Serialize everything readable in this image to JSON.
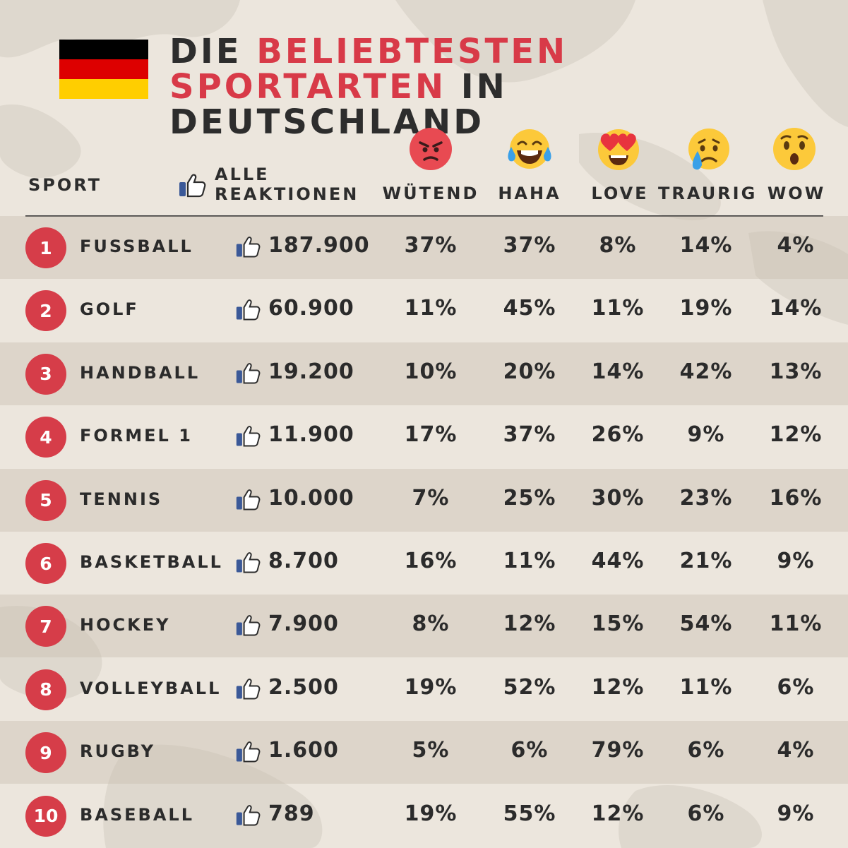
{
  "title": {
    "line1_dark": "DIE",
    "line1_red": "BELIEBTESTEN",
    "line2_red": "SPORTARTEN",
    "line2_dark": "IN DEUTSCHLAND"
  },
  "flag": {
    "colors": [
      "#000000",
      "#dd0000",
      "#ffce00"
    ]
  },
  "colors": {
    "accent_red": "#d63d49",
    "thumb_blue": "#3b5998",
    "text": "#2d2d2d"
  },
  "headers": {
    "sport": "SPORT",
    "total_line1": "ALLE",
    "total_line2": "REAKTIONEN",
    "reactions": [
      {
        "label": "WÜTEND",
        "icon": "angry-emoji-icon"
      },
      {
        "label": "HAHA",
        "icon": "laughing-tears-emoji-icon"
      },
      {
        "label": "LOVE",
        "icon": "heart-eyes-emoji-icon"
      },
      {
        "label": "TRAURIG",
        "icon": "crying-emoji-icon"
      },
      {
        "label": "WOW",
        "icon": "surprised-emoji-icon"
      }
    ]
  },
  "chart_data": {
    "type": "table",
    "columns": [
      "SPORT",
      "ALLE REAKTIONEN",
      "WÜTEND",
      "HAHA",
      "LOVE",
      "TRAURIG",
      "WOW"
    ],
    "rows": [
      {
        "rank": "1",
        "sport": "FUßBALL",
        "total": "187.900",
        "reactions": [
          "37%",
          "37%",
          "8%",
          "14%",
          "4%"
        ]
      },
      {
        "rank": "2",
        "sport": "GOLF",
        "total": "60.900",
        "reactions": [
          "11%",
          "45%",
          "11%",
          "19%",
          "14%"
        ]
      },
      {
        "rank": "3",
        "sport": "HANDBALL",
        "total": "19.200",
        "reactions": [
          "10%",
          "20%",
          "14%",
          "42%",
          "13%"
        ]
      },
      {
        "rank": "4",
        "sport": "FORMEL 1",
        "total": "11.900",
        "reactions": [
          "17%",
          "37%",
          "26%",
          "9%",
          "12%"
        ]
      },
      {
        "rank": "5",
        "sport": "TENNIS",
        "total": "10.000",
        "reactions": [
          "7%",
          "25%",
          "30%",
          "23%",
          "16%"
        ]
      },
      {
        "rank": "6",
        "sport": "BASKETBALL",
        "total": "8.700",
        "reactions": [
          "16%",
          "11%",
          "44%",
          "21%",
          "9%"
        ]
      },
      {
        "rank": "7",
        "sport": "HOCKEY",
        "total": "7.900",
        "reactions": [
          "8%",
          "12%",
          "15%",
          "54%",
          "11%"
        ]
      },
      {
        "rank": "8",
        "sport": "VOLLEYBALL",
        "total": "2.500",
        "reactions": [
          "19%",
          "52%",
          "12%",
          "11%",
          "6%"
        ]
      },
      {
        "rank": "9",
        "sport": "RUGBY",
        "total": "1.600",
        "reactions": [
          "5%",
          "6%",
          "79%",
          "6%",
          "4%"
        ]
      },
      {
        "rank": "10",
        "sport": "BASEBALL",
        "total": "789",
        "reactions": [
          "19%",
          "55%",
          "12%",
          "6%",
          "9%"
        ]
      }
    ]
  }
}
